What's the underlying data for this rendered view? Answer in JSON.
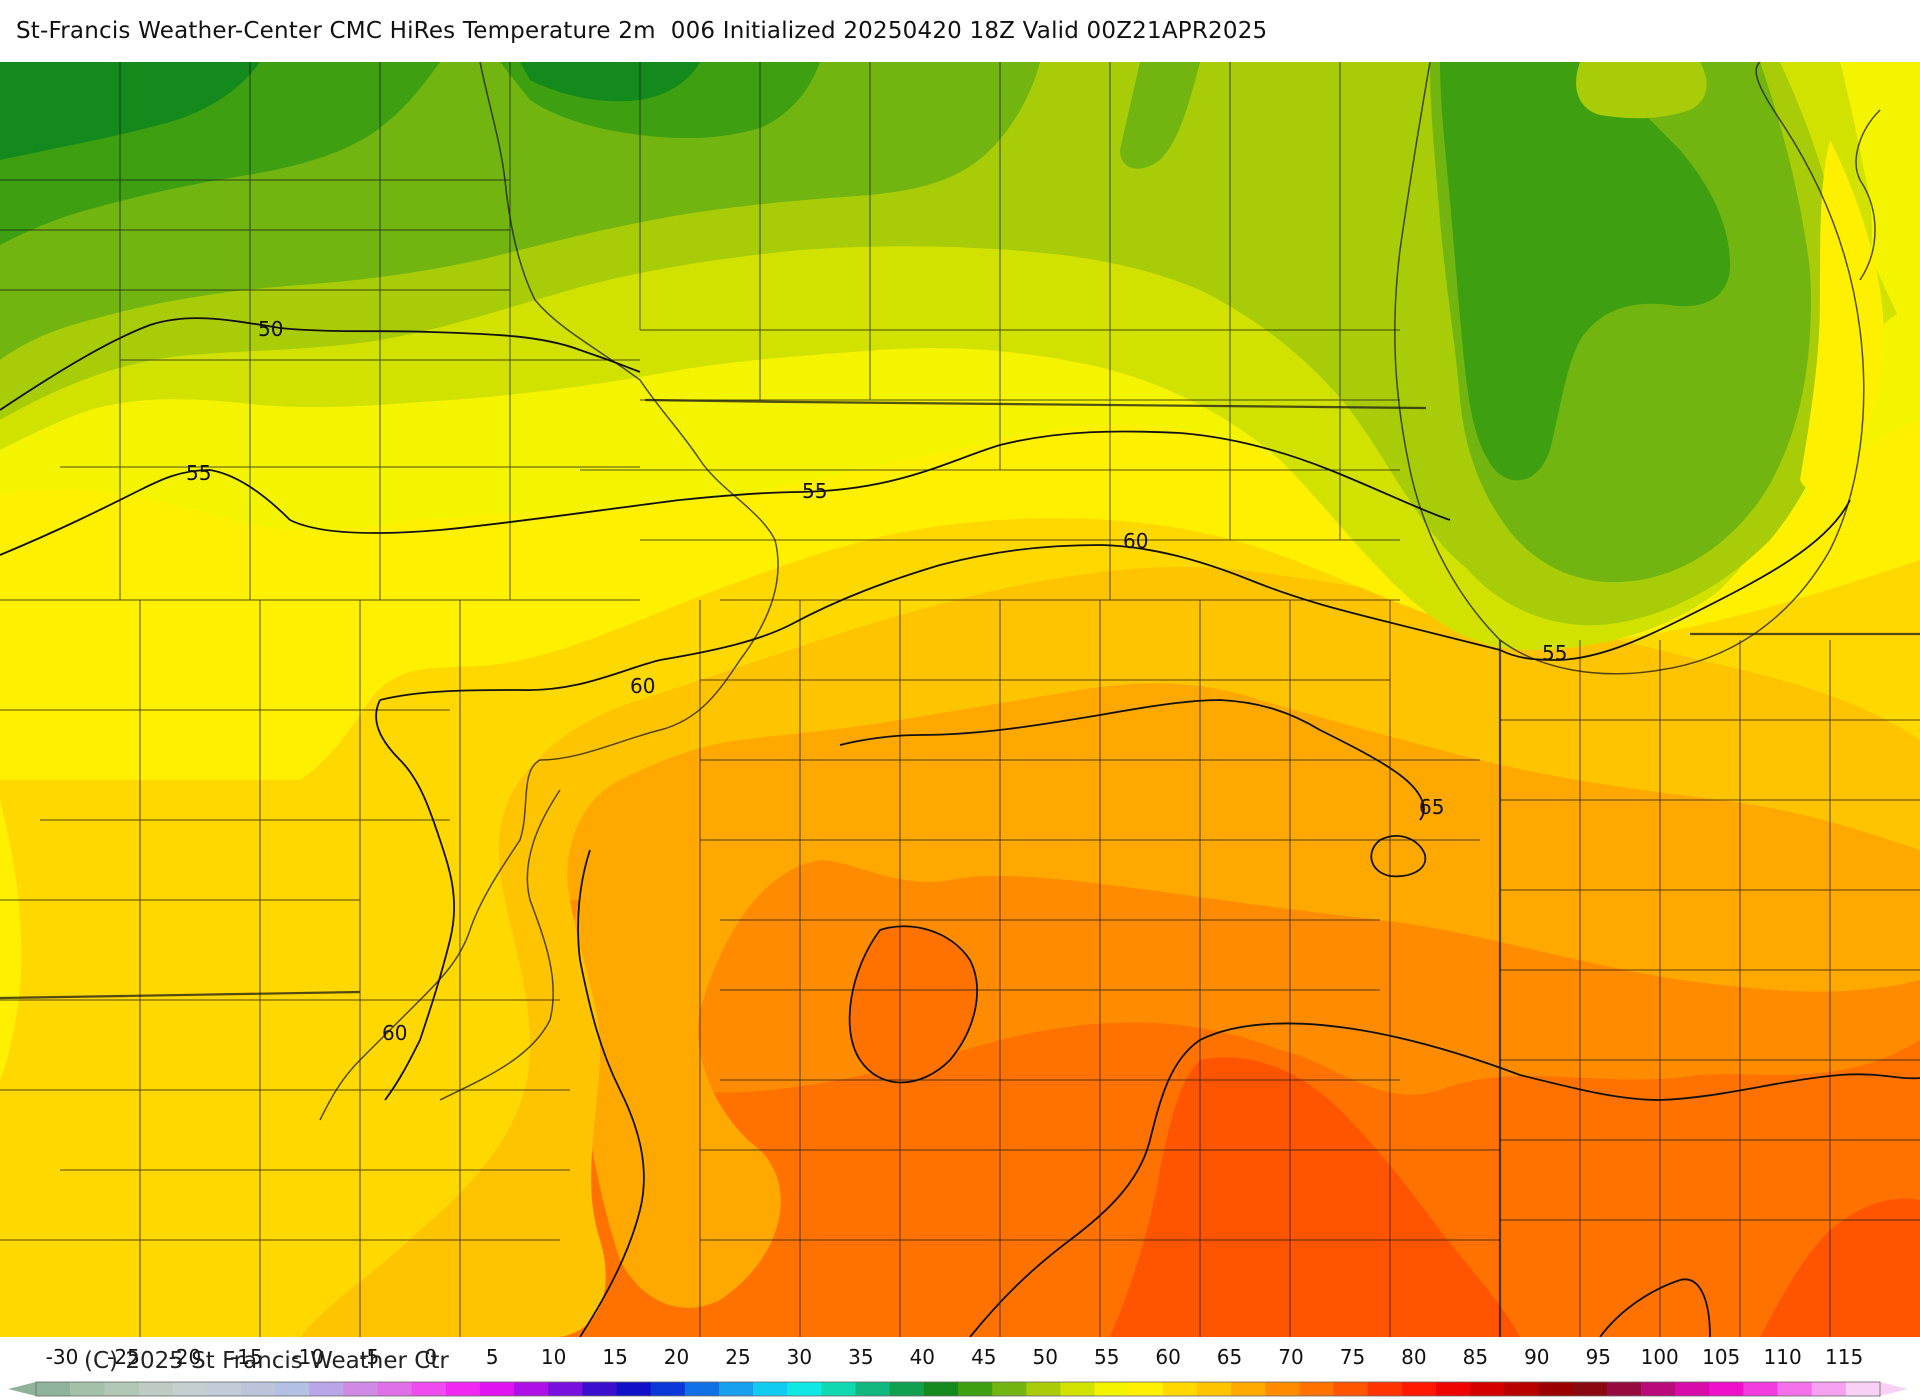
{
  "title": "St-Francis Weather-Center CMC HiRes Temperature 2m  006 Initialized 20250420 18Z Valid 00Z21APR2025",
  "copyright": "(C) 2025 St Francis Weather Ctr",
  "contour_labels": [
    {
      "text": "50"
    },
    {
      "text": "55"
    },
    {
      "text": "55"
    },
    {
      "text": "55"
    },
    {
      "text": "60"
    },
    {
      "text": "60"
    },
    {
      "text": "60"
    },
    {
      "text": "65"
    }
  ],
  "colorbar": {
    "ticks": [
      "-30",
      "-25",
      "-20",
      "-15",
      "-10",
      "-5",
      "0",
      "5",
      "10",
      "15",
      "20",
      "25",
      "30",
      "35",
      "40",
      "45",
      "50",
      "55",
      "60",
      "65",
      "70",
      "75",
      "80",
      "85",
      "90",
      "95",
      "100",
      "105",
      "110",
      "115"
    ],
    "colors": [
      "#8fb39a",
      "#a5c0a9",
      "#b2c6b6",
      "#bdcbc2",
      "#c6cfd0",
      "#c4cbd8",
      "#bcc4dc",
      "#b4c0e3",
      "#b9a6e8",
      "#cf8ae6",
      "#e070e8",
      "#ee4cef",
      "#f028f2",
      "#e014f0",
      "#b010e8",
      "#7a10e0",
      "#3a0ecc",
      "#1010c8",
      "#0a38d8",
      "#1070e6",
      "#18a0ee",
      "#10ccf0",
      "#10e8e4",
      "#10d8b0",
      "#10b880",
      "#10a050",
      "#148a1c",
      "#3ea010",
      "#72b410",
      "#a8cc08",
      "#d2e200",
      "#f4f400",
      "#fff000",
      "#ffd800",
      "#ffc400",
      "#ffa800",
      "#ff8c00",
      "#ff7200",
      "#ff5400",
      "#ff3400",
      "#ff1800",
      "#ee0400",
      "#d40000",
      "#b80000",
      "#9a0000",
      "#8a0810",
      "#960a40",
      "#b80a78",
      "#d80aaa",
      "#ee10cc",
      "#f23ce0",
      "#f470ea",
      "#f6a0f0",
      "#f8d0f6"
    ]
  }
}
